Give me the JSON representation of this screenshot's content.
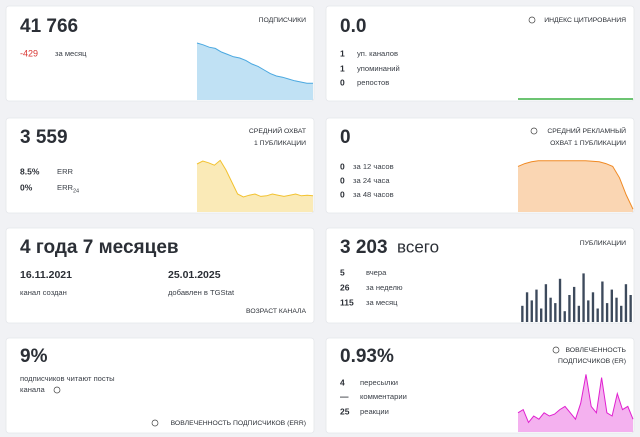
{
  "cards": [
    {
      "value": "41 766",
      "label": "ПОДПИСЧИКИ",
      "change": "-429",
      "change_label": "за месяц",
      "chart": {
        "type": "area",
        "color": "#4aa8e0",
        "ylim": [
          0,
          100
        ],
        "values": [
          95,
          92,
          88,
          86,
          80,
          76,
          72,
          70,
          66,
          60,
          56,
          50,
          44,
          40,
          38,
          35,
          32,
          30,
          28,
          28
        ]
      }
    },
    {
      "value": "0.0",
      "label": "ИНДЕКС ЦИТИРОВАНИЯ",
      "rows": [
        [
          1,
          "уп. каналов"
        ],
        [
          1,
          "упоминаний"
        ],
        [
          0,
          "репостов"
        ]
      ],
      "chart": {
        "type": "line",
        "color": "#3cb043",
        "ylim": [
          0,
          100
        ],
        "values": [
          0,
          0,
          0,
          0,
          0,
          0,
          0,
          0,
          0,
          0
        ]
      }
    },
    {
      "value": "3 559",
      "label_lines": [
        "СРЕДНИЙ ОХВАТ",
        "1 ПУБЛИКАЦИИ"
      ],
      "metrics": [
        {
          "value": "8.5%",
          "label": "ERR"
        },
        {
          "value": "0%",
          "label": "ERR",
          "sub": "24"
        }
      ],
      "chart": {
        "type": "area",
        "color": "#f2c230",
        "ylim": [
          0,
          100
        ],
        "values": [
          80,
          85,
          82,
          78,
          86,
          70,
          50,
          30,
          25,
          28,
          30,
          26,
          27,
          30,
          28,
          26,
          28,
          30,
          27,
          28,
          27
        ]
      }
    },
    {
      "value": 0,
      "label_lines": [
        "СРЕДНИЙ РЕКЛАМНЫЙ",
        "ОХВАТ 1 ПУБЛИКАЦИИ"
      ],
      "rows": [
        [
          0,
          "за 12 часов"
        ],
        [
          0,
          "за 24 часа"
        ],
        [
          0,
          "за 48 часов"
        ]
      ],
      "chart": {
        "type": "area",
        "color": "#f08a24",
        "ylim": [
          0,
          100
        ],
        "values": [
          80,
          85,
          88,
          90,
          90,
          90,
          90,
          90,
          90,
          90,
          90,
          89,
          88,
          85,
          80,
          60,
          30,
          5
        ]
      }
    },
    {
      "value": "4 года 7 месяцев",
      "dates": [
        {
          "date": "16.11.2021",
          "label": "канал создан"
        },
        {
          "date": "25.01.2025",
          "label": "добавлен в TGStat"
        }
      ],
      "label": "ВОЗРАСТ КАНАЛА"
    },
    {
      "value": "3 203",
      "value_suffix": "всего",
      "label": "ПУБЛИКАЦИИ",
      "rows": [
        [
          5,
          "вчера"
        ],
        [
          26,
          "за неделю"
        ],
        [
          115,
          "за месяц"
        ]
      ],
      "chart": {
        "type": "bar",
        "color": "#3d4a5c",
        "ylim": [
          0,
          100
        ],
        "values": [
          30,
          55,
          40,
          60,
          25,
          70,
          45,
          35,
          80,
          20,
          50,
          65,
          30,
          90,
          40,
          55,
          25,
          75,
          35,
          60,
          45,
          30,
          70,
          50
        ]
      }
    },
    {
      "value": "9%",
      "description_lines": [
        "подписчиков читают посты",
        "канала"
      ],
      "label": "ВОВЛЕЧЕННОСТЬ ПОДПИСЧИКОВ (ERR)"
    },
    {
      "value": "0.93%",
      "label_lines": [
        "ВОВЛЕЧЕННОСТЬ",
        "ПОДПИСЧИКОВ (ER)"
      ],
      "rows": [
        [
          4,
          "пересылки"
        ],
        [
          "—",
          "комментарии"
        ],
        [
          25,
          "реакции"
        ]
      ],
      "chart": {
        "type": "area",
        "color": "#e020d0",
        "ylim": [
          0,
          100
        ],
        "values": [
          30,
          35,
          15,
          25,
          20,
          30,
          25,
          28,
          35,
          40,
          30,
          20,
          45,
          90,
          40,
          30,
          85,
          30,
          25,
          60,
          35,
          40,
          20
        ]
      }
    }
  ]
}
